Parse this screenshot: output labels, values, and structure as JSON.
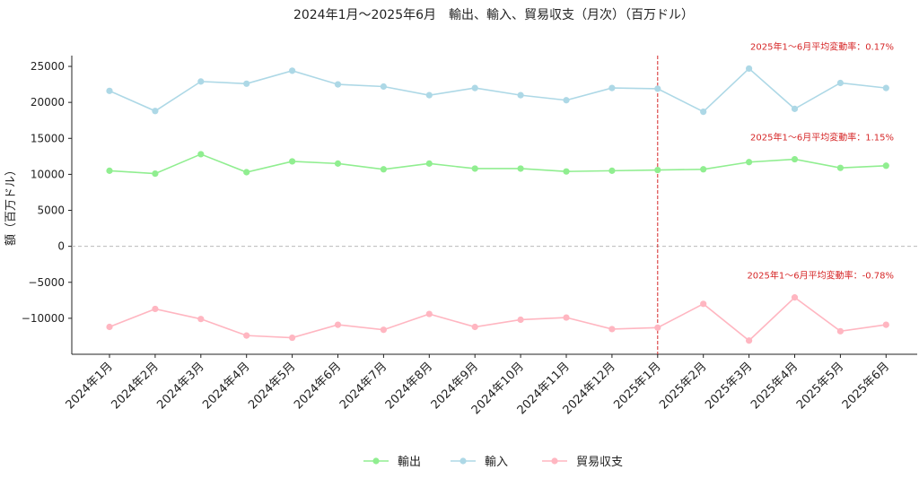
{
  "chart_data": {
    "type": "line",
    "title": "2024年1月〜2025年6月　輸出、輸入、貿易収支（月次）（百万ドル）",
    "xlabel": "",
    "ylabel": "額（百万ドル）",
    "ylim": [
      -15000,
      26500
    ],
    "yticks": [
      -10000,
      -5000,
      0,
      5000,
      10000,
      15000,
      20000,
      25000
    ],
    "categories": [
      "2024年1月",
      "2024年2月",
      "2024年3月",
      "2024年4月",
      "2024年5月",
      "2024年6月",
      "2024年7月",
      "2024年8月",
      "2024年9月",
      "2024年10月",
      "2024年11月",
      "2024年12月",
      "2025年1月",
      "2025年2月",
      "2025年3月",
      "2025年4月",
      "2025年5月",
      "2025年6月"
    ],
    "series": [
      {
        "name": "輸出",
        "color": "#90ee90",
        "values": [
          10500,
          10100,
          12800,
          10300,
          11800,
          11500,
          10700,
          11500,
          10800,
          10800,
          10400,
          10500,
          10600,
          10700,
          11700,
          12100,
          10900,
          11200
        ]
      },
      {
        "name": "輸入",
        "color": "#add8e6",
        "values": [
          21600,
          18800,
          22900,
          22600,
          24400,
          22500,
          22200,
          21000,
          22000,
          21000,
          20300,
          22000,
          21900,
          18700,
          24700,
          19100,
          22700,
          22000
        ]
      },
      {
        "name": "貿易収支",
        "color": "#ffb6c1",
        "values": [
          -11200,
          -8700,
          -10100,
          -12400,
          -12700,
          -10900,
          -11600,
          -9400,
          -11200,
          -10200,
          -9900,
          -11500,
          -11300,
          -8000,
          -13100,
          -7100,
          -11800,
          -10900
        ]
      }
    ],
    "zero_line": true,
    "vertical_marker": {
      "category": "2025年1月",
      "color": "#d62728"
    },
    "annotations": [
      {
        "text": "2025年1〜6月平均変動率：0.17%",
        "series": "輸入"
      },
      {
        "text": "2025年1〜6月平均変動率：1.15%",
        "series": "輸出"
      },
      {
        "text": "2025年1〜6月平均変動率：-0.78%",
        "series": "貿易収支"
      }
    ],
    "legend": "bottom-center",
    "grid": false
  }
}
